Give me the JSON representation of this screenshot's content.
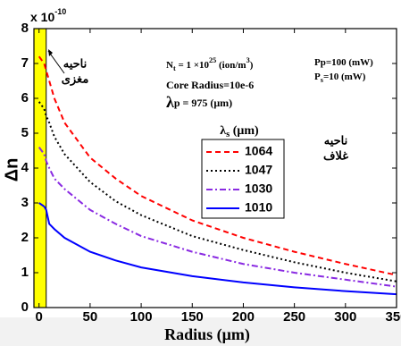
{
  "chart_data": {
    "type": "line",
    "multiplier": {
      "base": "x 10",
      "exponent": "-10"
    },
    "x_label": "Radius (μm)",
    "y_label": "Δn",
    "xlim": [
      -5,
      350
    ],
    "ylim": [
      0,
      8
    ],
    "xticks": [
      0,
      50,
      100,
      150,
      200,
      250,
      300,
      350
    ],
    "yticks": [
      0,
      1,
      2,
      3,
      4,
      5,
      6,
      7,
      8
    ],
    "shaded_region": {
      "x": [
        -5,
        7
      ],
      "color": "#ffff00"
    },
    "x": [
      0,
      5,
      7,
      10,
      15,
      25,
      50,
      75,
      100,
      150,
      200,
      250,
      300,
      350
    ],
    "legend_title": [
      {
        "t": "λ"
      },
      {
        "t": "s",
        "s": "sub"
      },
      {
        "t": " (μm)"
      }
    ],
    "series": [
      {
        "name": "1064",
        "color": "#ff0000",
        "dash": "6,4",
        "values": [
          7.2,
          7.0,
          6.8,
          6.5,
          6.0,
          5.3,
          4.3,
          3.7,
          3.2,
          2.5,
          2.0,
          1.6,
          1.25,
          0.93
        ]
      },
      {
        "name": "1047",
        "color": "#000000",
        "dash": "2,3",
        "values": [
          5.9,
          5.7,
          5.5,
          5.3,
          4.9,
          4.4,
          3.6,
          3.05,
          2.65,
          2.05,
          1.65,
          1.3,
          1.0,
          0.75
        ]
      },
      {
        "name": "1030",
        "color": "#8a2be2",
        "dash": "7,3,2,3",
        "values": [
          4.6,
          4.4,
          4.2,
          4.0,
          3.7,
          3.4,
          2.8,
          2.4,
          2.05,
          1.6,
          1.25,
          1.0,
          0.8,
          0.6
        ]
      },
      {
        "name": "1010",
        "color": "#0000ff",
        "dash": "",
        "values": [
          3.0,
          2.9,
          2.8,
          2.4,
          2.25,
          2.0,
          1.6,
          1.35,
          1.15,
          0.9,
          0.72,
          0.58,
          0.47,
          0.38
        ]
      }
    ],
    "annotations": [
      [
        {
          "t": "N"
        },
        {
          "t": "t",
          "s": "sub"
        },
        {
          "t": " = 1 ×10"
        },
        {
          "t": "25",
          "s": "super"
        },
        {
          "t": " (ion/m"
        },
        {
          "t": "3",
          "s": "super"
        },
        {
          "t": ")"
        }
      ],
      [
        {
          "t": "Core Radius=10e-6"
        }
      ],
      [
        {
          "t": "λ",
          "s": "big"
        },
        {
          "t": "p = 975 (μm)"
        }
      ],
      [
        {
          "t": "Pp=100 (mW)"
        }
      ],
      [
        {
          "t": "P"
        },
        {
          "t": "s",
          "s": "sub"
        },
        {
          "t": "=10 (mW)"
        }
      ]
    ],
    "region_labels": [
      [
        "ناحیه",
        "مغزی"
      ],
      [
        "ناحیه",
        "غلاف"
      ]
    ]
  }
}
